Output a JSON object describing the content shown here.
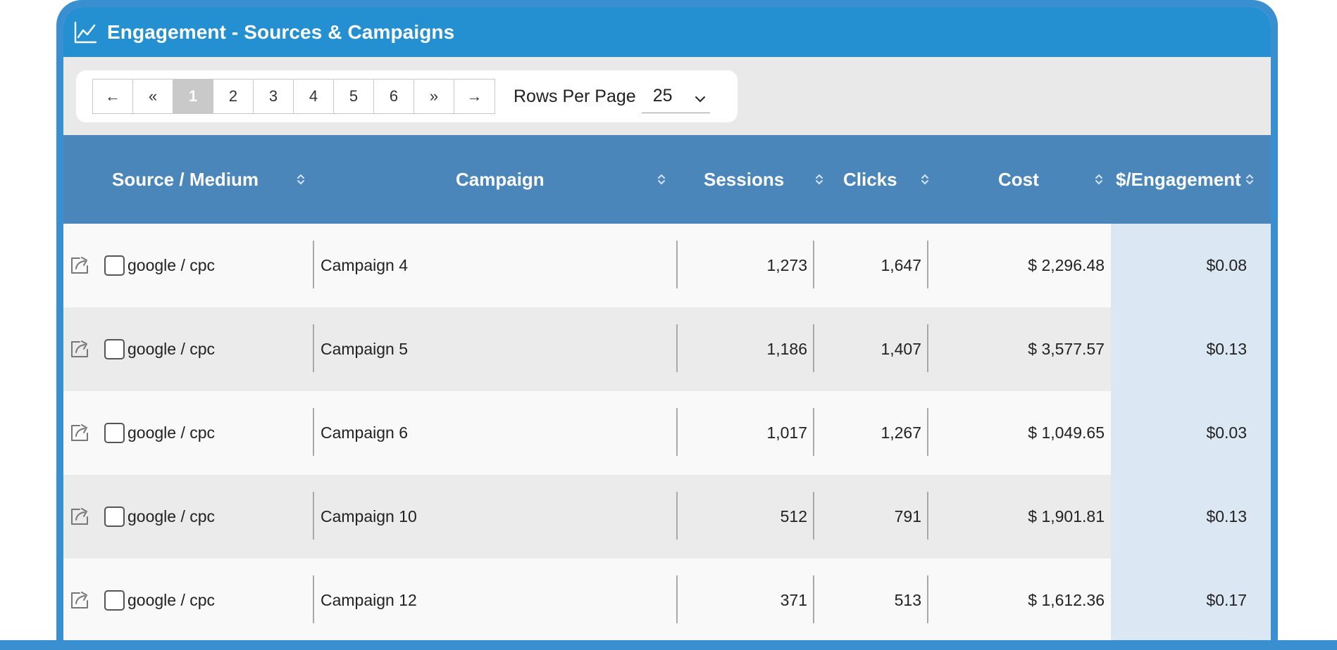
{
  "panel": {
    "icon": "line-chart-icon",
    "title": "Engagement - Sources & Campaigns"
  },
  "pagination": {
    "first": "←",
    "prev": "«",
    "pages": [
      "1",
      "2",
      "3",
      "4",
      "5",
      "6"
    ],
    "current": "1",
    "next": "»",
    "last": "→",
    "rows_per_page_label": "Rows Per Page",
    "rows_per_page_value": "25"
  },
  "table": {
    "columns": [
      "Source / Medium",
      "Campaign",
      "Sessions",
      "Clicks",
      "Cost",
      "$/Engagement"
    ],
    "rows": [
      {
        "source": "google / cpc",
        "campaign": "Campaign 4",
        "sessions": "1,273",
        "clicks": "1,647",
        "cost": "$ 2,296.48",
        "per_engagement": "$0.08"
      },
      {
        "source": "google / cpc",
        "campaign": "Campaign 5",
        "sessions": "1,186",
        "clicks": "1,407",
        "cost": "$ 3,577.57",
        "per_engagement": "$0.13"
      },
      {
        "source": "google / cpc",
        "campaign": "Campaign 6",
        "sessions": "1,017",
        "clicks": "1,267",
        "cost": "$ 1,049.65",
        "per_engagement": "$0.03"
      },
      {
        "source": "google / cpc",
        "campaign": "Campaign 10",
        "sessions": "512",
        "clicks": "791",
        "cost": "$ 1,901.81",
        "per_engagement": "$0.13"
      },
      {
        "source": "google / cpc",
        "campaign": "Campaign 12",
        "sessions": "371",
        "clicks": "513",
        "cost": "$ 1,612.36",
        "per_engagement": "$0.17"
      }
    ]
  },
  "colors": {
    "header_blue": "#2590d1",
    "frame_blue": "#3a8fd0",
    "table_head": "#4a86b9",
    "engagement_col": "#dbe8f4"
  }
}
